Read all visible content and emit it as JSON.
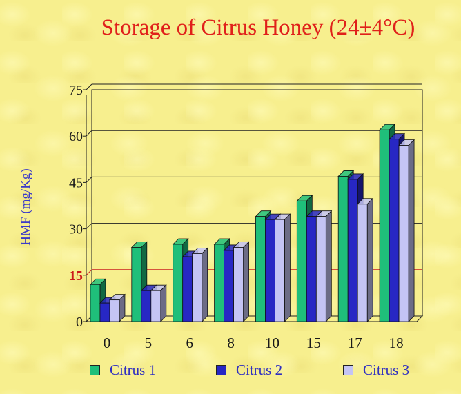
{
  "title": "Storage of Citrus Honey (24±4°C)",
  "chart_data": {
    "type": "bar",
    "title": "Storage of Citrus Honey (24±4°C)",
    "xlabel": "",
    "ylabel": "HMF (mg/Kg)",
    "ylim": [
      0,
      75
    ],
    "yticks": [
      0,
      15,
      30,
      45,
      60,
      75
    ],
    "categories": [
      "0",
      "5",
      "6",
      "8",
      "10",
      "15",
      "17",
      "18"
    ],
    "series": [
      {
        "name": "Citrus 1",
        "values": [
          12,
          24,
          25,
          25,
          34,
          39,
          47,
          62
        ],
        "color": "#1fbf7a"
      },
      {
        "name": "Citrus 2",
        "values": [
          6,
          10,
          21,
          23,
          33,
          34,
          46,
          59
        ],
        "color": "#2727c4"
      },
      {
        "name": "Citrus 3",
        "values": [
          7,
          10,
          22,
          24,
          33,
          34,
          38,
          57
        ],
        "color": "#c4c4f4"
      }
    ],
    "threshold": {
      "value": 15,
      "color": "#cc2020"
    },
    "grid": true,
    "legend_position": "bottom",
    "title_color": "#e0201a",
    "axis_label_color": "#3a3ac8"
  }
}
